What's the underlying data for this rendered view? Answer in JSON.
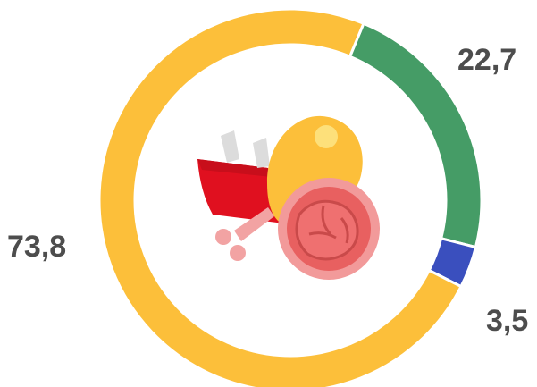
{
  "chart_data": {
    "type": "pie",
    "variant": "donut",
    "categories": [
      "",
      "",
      ""
    ],
    "values": [
      22.7,
      3.5,
      73.8
    ],
    "value_labels": [
      "22,7",
      "3,5",
      "73,8"
    ],
    "colors": [
      "#459c66",
      "#3a4fbe",
      "#fcbf3a"
    ],
    "start_angle_deg": 22.5,
    "direction": "clockwise",
    "title": "",
    "legend": "none",
    "center_icon": "meat-icon"
  }
}
